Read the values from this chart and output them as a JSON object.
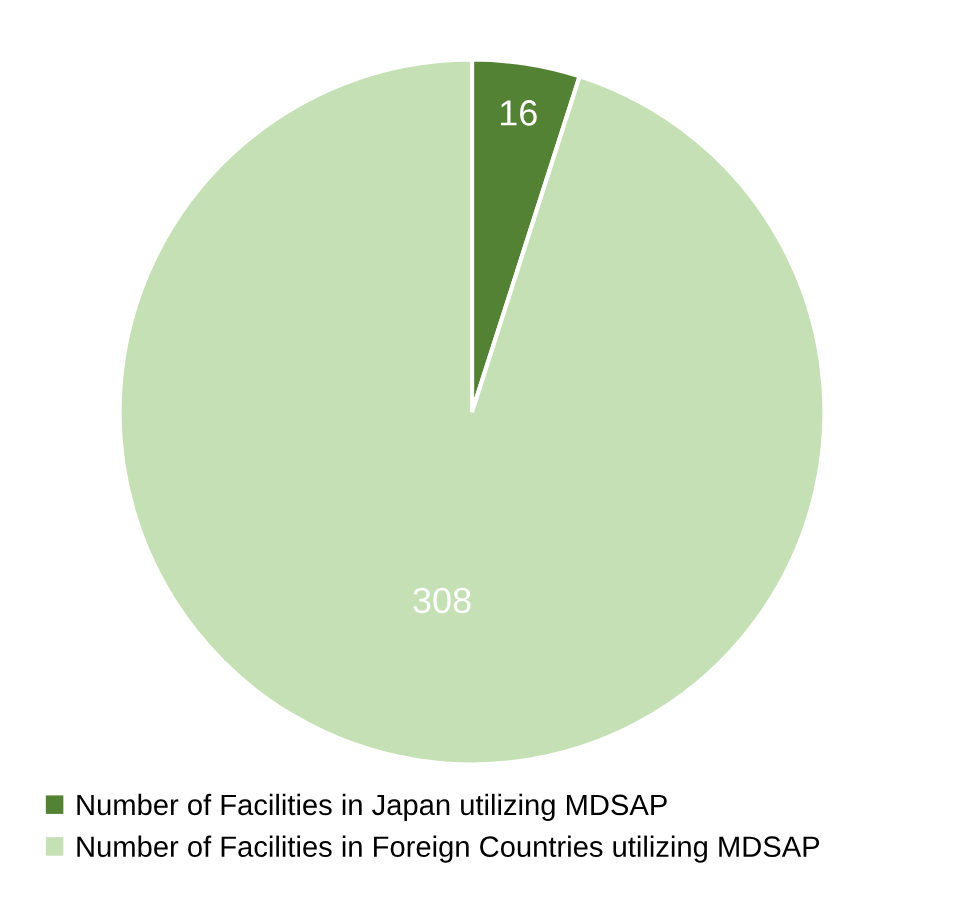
{
  "chart_data": {
    "type": "pie",
    "categories": [
      "Number of Facilities in Japan utilizing MDSAP",
      "Number of Facilities in Foreign Countries utilizing MDSAP"
    ],
    "values": [
      16,
      308
    ],
    "colors": [
      "#548235",
      "#c5e0b4"
    ],
    "data_labels": true,
    "legend": "bottom left"
  }
}
